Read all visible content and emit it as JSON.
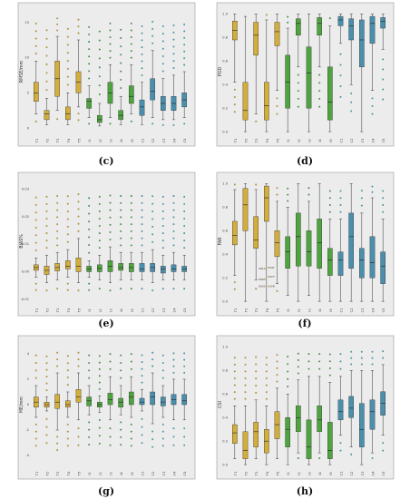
{
  "categories": [
    "T1",
    "T2",
    "T3",
    "T4",
    "T5",
    "I1",
    "I2",
    "I3",
    "I4",
    "I5",
    "C1",
    "C2",
    "C3",
    "C4",
    "C5"
  ],
  "colors": {
    "T": "#d4ae3a",
    "I": "#4ea43e",
    "C": "#4a90ad",
    "outlier_T": "#c79a2a",
    "outlier_I": "#3a9a3a",
    "outlier_C": "#3aa0b5"
  },
  "chart_data": [
    {
      "label": "(c)",
      "type": "box",
      "ylabel": "RMSE/mm",
      "yticks": [
        "0",
        "5",
        "10",
        "15"
      ],
      "ylim": [
        -1,
        17
      ],
      "boxes": [
        [
          2,
          3.8,
          5,
          6.5,
          9.5
        ],
        [
          0.5,
          1.2,
          2,
          2.5,
          4.2
        ],
        [
          2.5,
          4.5,
          7,
          9.5,
          13
        ],
        [
          0.5,
          1.2,
          2,
          3,
          5
        ],
        [
          3,
          5,
          6.5,
          8,
          12.5
        ],
        [
          1.5,
          2.8,
          3.8,
          4.2,
          6
        ],
        [
          0.3,
          0.8,
          1.2,
          1.8,
          3.5
        ],
        [
          1.5,
          3.5,
          5,
          6.5,
          9
        ],
        [
          0.5,
          1.2,
          1.8,
          2.5,
          4.5
        ],
        [
          2,
          3.5,
          4.5,
          6,
          9
        ],
        [
          0.5,
          1.8,
          3,
          4,
          6.5
        ],
        [
          1.5,
          4,
          5.2,
          7,
          11
        ],
        [
          1.2,
          2.5,
          3.5,
          4.5,
          7
        ],
        [
          1.2,
          2.5,
          3.5,
          4.5,
          7.5
        ],
        [
          1.5,
          3,
          4,
          5,
          8
        ]
      ]
    },
    {
      "label": "(d)",
      "type": "box",
      "ylabel": "POD",
      "yticks": [
        "0.0",
        "0.2",
        "0.4",
        "0.6",
        "0.8",
        "1.0"
      ],
      "ylim": [
        -0.03,
        1.05
      ],
      "boxes": [
        [
          0.42,
          0.78,
          0.86,
          0.94,
          1.0
        ],
        [
          0.0,
          0.1,
          0.18,
          0.42,
          0.98
        ],
        [
          0.15,
          0.65,
          0.82,
          0.93,
          1.0
        ],
        [
          0.0,
          0.1,
          0.22,
          0.42,
          0.95
        ],
        [
          0.35,
          0.73,
          0.85,
          0.93,
          1.0
        ],
        [
          0.0,
          0.2,
          0.42,
          0.65,
          0.88
        ],
        [
          0.55,
          0.82,
          0.92,
          0.96,
          1.0
        ],
        [
          0.0,
          0.2,
          0.5,
          0.72,
          1.0
        ],
        [
          0.55,
          0.82,
          0.92,
          0.97,
          1.0
        ],
        [
          0.0,
          0.1,
          0.25,
          0.55,
          0.9
        ],
        [
          0.75,
          0.9,
          0.95,
          0.98,
          1.0
        ],
        [
          0.4,
          0.78,
          0.9,
          0.96,
          1.0
        ],
        [
          0.0,
          0.55,
          0.78,
          0.95,
          1.0
        ],
        [
          0.35,
          0.75,
          0.92,
          0.98,
          1.0
        ],
        [
          0.7,
          0.88,
          0.94,
          0.97,
          1.0
        ]
      ]
    },
    {
      "label": "(e)",
      "type": "box",
      "ylabel": "BIAS%",
      "yticks": [
        "-0.01",
        "0.00",
        "0.01",
        "0.02",
        "0.03"
      ],
      "ylim": [
        -0.012,
        0.034
      ],
      "boxes": [
        [
          -0.002,
          0.0005,
          0.0015,
          0.0025,
          0.005
        ],
        [
          -0.004,
          -0.001,
          0.0005,
          0.002,
          0.006
        ],
        [
          -0.003,
          0.0003,
          0.0015,
          0.003,
          0.007
        ],
        [
          -0.002,
          0.001,
          0.002,
          0.004,
          0.008
        ],
        [
          -0.004,
          0.0,
          0.002,
          0.005,
          0.012
        ],
        [
          -0.002,
          0.0,
          0.001,
          0.002,
          0.004
        ],
        [
          -0.003,
          0.0,
          0.0012,
          0.0025,
          0.006
        ],
        [
          -0.004,
          0.0,
          0.002,
          0.004,
          0.009
        ],
        [
          -0.003,
          0.0005,
          0.0015,
          0.003,
          0.007
        ],
        [
          -0.003,
          0.0,
          0.0015,
          0.003,
          0.007
        ],
        [
          -0.003,
          0.0,
          0.001,
          0.003,
          0.007
        ],
        [
          -0.004,
          0.0,
          0.0015,
          0.003,
          0.008
        ],
        [
          -0.003,
          -0.0005,
          0.001,
          0.002,
          0.006
        ],
        [
          -0.003,
          0.0,
          0.001,
          0.0025,
          0.007
        ],
        [
          -0.003,
          0.0,
          0.001,
          0.002,
          0.006
        ]
      ]
    },
    {
      "label": "(f)",
      "type": "box",
      "ylabel": "FAR",
      "yticks": [
        "0.0",
        "0.2",
        "0.4",
        "0.6",
        "0.8",
        "1.0"
      ],
      "ylim": [
        -0.03,
        1.05
      ],
      "boxes": [
        [
          0.22,
          0.48,
          0.56,
          0.68,
          0.95
        ],
        [
          0.0,
          0.6,
          0.82,
          0.96,
          1.0
        ],
        [
          0.18,
          0.45,
          0.52,
          0.72,
          0.95
        ],
        [
          0.0,
          0.68,
          0.88,
          0.98,
          1.0
        ],
        [
          0.15,
          0.38,
          0.5,
          0.6,
          0.85
        ],
        [
          0.05,
          0.28,
          0.42,
          0.55,
          0.8
        ],
        [
          0.0,
          0.3,
          0.55,
          0.75,
          1.0
        ],
        [
          0.05,
          0.3,
          0.42,
          0.6,
          0.85
        ],
        [
          0.0,
          0.28,
          0.5,
          0.7,
          1.0
        ],
        [
          0.0,
          0.22,
          0.35,
          0.45,
          0.7
        ],
        [
          0.0,
          0.22,
          0.35,
          0.42,
          0.7
        ],
        [
          0.0,
          0.28,
          0.55,
          0.75,
          1.0
        ],
        [
          0.0,
          0.2,
          0.35,
          0.45,
          0.75
        ],
        [
          0.0,
          0.2,
          0.33,
          0.55,
          0.88
        ],
        [
          0.0,
          0.15,
          0.3,
          0.42,
          0.7
        ]
      ],
      "annotations": [
        "201",
        "500",
        "503",
        "247",
        "377",
        "376"
      ]
    },
    {
      "label": "(g)",
      "type": "box",
      "ylabel": "ME/mm",
      "yticks": [
        "-4",
        "-2",
        "0",
        "2",
        "4"
      ],
      "ylim": [
        -5,
        5
      ],
      "boxes": [
        [
          -1,
          -0.2,
          0.2,
          0.6,
          1.5
        ],
        [
          -0.5,
          -0.2,
          0,
          0.2,
          0.6
        ],
        [
          -2,
          -0.3,
          0.2,
          0.8,
          2.5
        ],
        [
          -1,
          -0.2,
          0,
          0.3,
          1
        ],
        [
          -1.2,
          0.2,
          0.6,
          1.2,
          2.5
        ],
        [
          -0.8,
          -0.1,
          0.3,
          0.6,
          1.5
        ],
        [
          -0.6,
          -0.2,
          0,
          0.2,
          0.7
        ],
        [
          -1.2,
          0,
          0.4,
          0.9,
          2.2
        ],
        [
          -0.8,
          -0.2,
          0.2,
          0.5,
          1.5
        ],
        [
          -1,
          0,
          0.6,
          1,
          2.2
        ],
        [
          -0.5,
          0,
          0.2,
          0.5,
          1.2
        ],
        [
          -1.5,
          0,
          0.6,
          1,
          2.5
        ],
        [
          -1,
          -0.1,
          0.2,
          0.6,
          1.5
        ],
        [
          -1.2,
          0,
          0.4,
          0.8,
          2
        ],
        [
          -1.2,
          0,
          0.3,
          0.8,
          2
        ]
      ]
    },
    {
      "label": "(h)",
      "type": "box",
      "ylabel": "CSI",
      "yticks": [
        "0.0",
        "0.2",
        "0.4",
        "0.6",
        "0.8",
        "1.0"
      ],
      "ylim": [
        -0.03,
        1.05
      ],
      "boxes": [
        [
          0.05,
          0.18,
          0.27,
          0.34,
          0.5
        ],
        [
          0.0,
          0.05,
          0.12,
          0.28,
          0.5
        ],
        [
          0.05,
          0.15,
          0.28,
          0.36,
          0.55
        ],
        [
          0.0,
          0.1,
          0.2,
          0.3,
          0.5
        ],
        [
          0.05,
          0.22,
          0.34,
          0.45,
          0.65
        ],
        [
          0.0,
          0.15,
          0.3,
          0.4,
          0.6
        ],
        [
          0.1,
          0.28,
          0.4,
          0.5,
          0.72
        ],
        [
          0.0,
          0.05,
          0.15,
          0.38,
          0.75
        ],
        [
          0.1,
          0.28,
          0.38,
          0.5,
          0.75
        ],
        [
          0.0,
          0.05,
          0.12,
          0.36,
          0.7
        ],
        [
          0.25,
          0.38,
          0.45,
          0.55,
          0.75
        ],
        [
          0.15,
          0.4,
          0.48,
          0.58,
          0.8
        ],
        [
          0.0,
          0.15,
          0.3,
          0.52,
          0.8
        ],
        [
          0.1,
          0.3,
          0.45,
          0.55,
          0.8
        ],
        [
          0.25,
          0.42,
          0.52,
          0.62,
          0.85
        ]
      ]
    }
  ]
}
